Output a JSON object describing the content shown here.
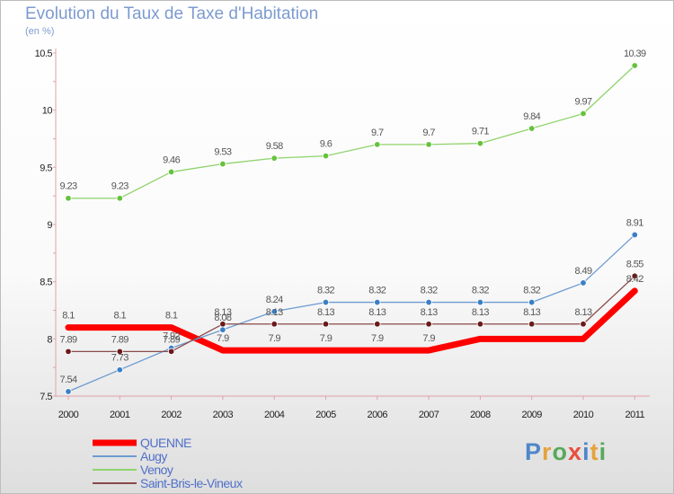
{
  "title": "Evolution du Taux de Taxe d'Habitation",
  "subtitle": "(en %)",
  "brand": {
    "letters": [
      "P",
      "r",
      "o",
      "x",
      "i",
      "t",
      "i"
    ],
    "colors": [
      "#4f87c9",
      "#e5a23c",
      "#58a95a",
      "#e64f3c",
      "#4f87c9",
      "#e5a23c",
      "#58a95a"
    ]
  },
  "chart_data": {
    "type": "line",
    "title": "Evolution du Taux de Taxe d'Habitation",
    "ylabel": "(en %)",
    "xlabel": "",
    "x": [
      "2000",
      "2001",
      "2002",
      "2003",
      "2004",
      "2005",
      "2006",
      "2007",
      "2008",
      "2009",
      "2010",
      "2011"
    ],
    "ylim": [
      7.5,
      10.5
    ],
    "yticks": [
      "7.5",
      "8",
      "8.5",
      "9",
      "9.5",
      "10",
      "10.5"
    ],
    "grid": false,
    "legend": "bottom-left",
    "series": [
      {
        "name": "QUENNE",
        "color": "#ff0000",
        "width": 7,
        "markers": false,
        "values": [
          8.1,
          8.1,
          8.1,
          7.9,
          7.9,
          7.9,
          7.9,
          7.9,
          8.0,
          8.0,
          8.0,
          8.42
        ],
        "labels": [
          "8.1",
          "8.1",
          "8.1",
          "7.9",
          "7.9",
          "7.9",
          "7.9",
          "7.9",
          "",
          "",
          "",
          "8.42"
        ]
      },
      {
        "name": "Augy",
        "color": "#6b9bd1",
        "width": 1.3,
        "markers": true,
        "marker_color": "#3a7fc6",
        "values": [
          7.54,
          7.73,
          7.92,
          8.08,
          8.24,
          8.32,
          8.32,
          8.32,
          8.32,
          8.32,
          8.49,
          8.91
        ],
        "labels": [
          "7.54",
          "7.73",
          "7.92",
          "8.08",
          "8.24",
          "8.32",
          "8.32",
          "8.32",
          "8.32",
          "8.32",
          "8.49",
          "8.91"
        ]
      },
      {
        "name": "Venoy",
        "color": "#8ed36a",
        "width": 1.3,
        "markers": true,
        "marker_color": "#66c23c",
        "values": [
          9.23,
          9.23,
          9.46,
          9.53,
          9.58,
          9.6,
          9.7,
          9.7,
          9.71,
          9.84,
          9.97,
          10.39
        ],
        "labels": [
          "9.23",
          "9.23",
          "9.46",
          "9.53",
          "9.58",
          "9.6",
          "9.7",
          "9.7",
          "9.71",
          "9.84",
          "9.97",
          "10.39"
        ]
      },
      {
        "name": "Saint-Bris-le-Vineux",
        "color": "#8a4a4a",
        "width": 1.3,
        "markers": true,
        "marker_color": "#6b1a1a",
        "values": [
          7.89,
          7.89,
          7.89,
          8.13,
          8.13,
          8.13,
          8.13,
          8.13,
          8.13,
          8.13,
          8.13,
          8.55
        ],
        "labels": [
          "7.89",
          "7.89",
          "7.89",
          "8.13",
          "8.13",
          "8.13",
          "8.13",
          "8.13",
          "8.13",
          "8.13",
          "8.13",
          "8.55"
        ]
      }
    ]
  }
}
